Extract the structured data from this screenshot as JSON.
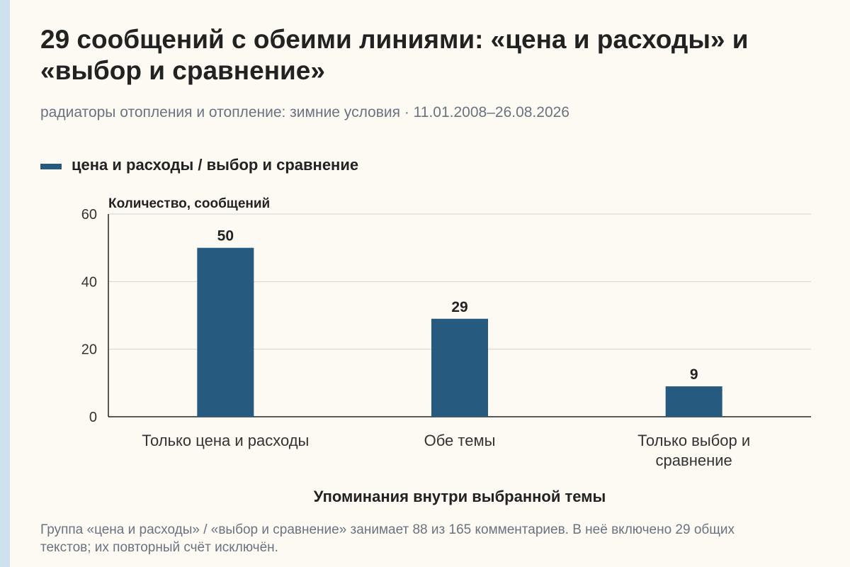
{
  "title": "29 сообщений с обеими линиями: «цена и расходы» и «выбор и сравнение»",
  "subtitle": "радиаторы отопления и отопление: зимние условия · 11.01.2008–26.08.2026",
  "footnote": "Группа «цена и расходы» / «выбор и сравнение» занимает 88 из 165 комментариев. В неё включено 29 общих текстов; их повторный счёт исключён.",
  "colors": {
    "bar": "#275a7f",
    "grid": "#d4d4d4",
    "axis": "#222222",
    "background": "#fcfaf2"
  },
  "chart_data": {
    "type": "bar",
    "categories": [
      [
        "Только цена и расходы"
      ],
      [
        "Обе темы"
      ],
      [
        "Только выбор и",
        "сравнение"
      ]
    ],
    "series": [
      {
        "name": "цена и расходы / выбор и сравнение",
        "values": [
          50,
          29,
          9
        ]
      }
    ],
    "data_labels": [
      "50",
      "29",
      "9"
    ],
    "xlabel": "Упоминания внутри выбранной темы",
    "ylabel": "Количество, сообщений",
    "ylim": [
      0,
      60
    ],
    "yticks": [
      0,
      20,
      40,
      60
    ],
    "grid": true,
    "legend": "top-left"
  }
}
